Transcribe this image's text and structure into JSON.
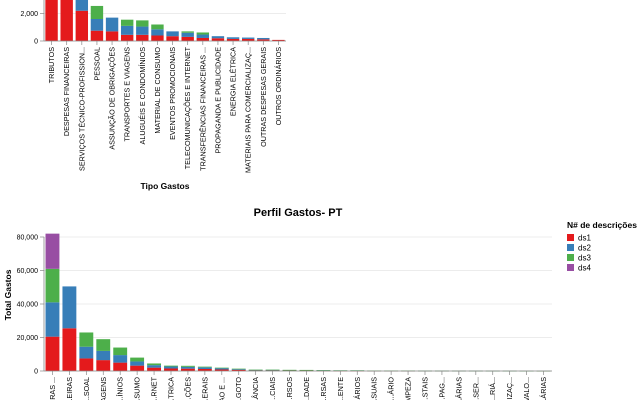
{
  "colors": {
    "ds1": "#e41a1c",
    "ds2": "#377eb8",
    "ds3": "#4daf4a",
    "ds4": "#984ea3"
  },
  "chart_data": [
    {
      "type": "bar",
      "stacked": true,
      "title": "",
      "xlabel": "Tipo Gastos",
      "ylabel": "",
      "ylim": [
        0,
        4000
      ],
      "yticks": [
        0,
        2000
      ],
      "categories": [
        "TRIBUTOS",
        "DESPESAS FINANCEIRAS",
        "SERVIÇOS TÉCNICO-PROFISSION...",
        "PESSOAL",
        "ASSUNÇÃO DE OBRIGAÇÕES",
        "TRANSPORTES E VIAGENS",
        "ALUGUÉIS E CONDOMÍNIOS",
        "MATERIAL DE CONSUMO",
        "EVENTOS PROMOCIONAIS",
        "TELECOMUNICAÇÕES E INTERNET",
        "TRANSFERÊNCIAS FINANCEIRAS ...",
        "PROPAGANDA E PUBLICIDADE",
        "ENERGIA ELÉTRICA",
        "MATERIAIS PARA COMERCIALIZAÇ...",
        "OUTRAS DESPESAS GERAIS",
        "OUTROS ORDINÁRIOS"
      ],
      "series": [
        {
          "name": "ds1",
          "values": [
            3200,
            3200,
            2200,
            750,
            700,
            450,
            450,
            400,
            350,
            300,
            220,
            200,
            150,
            150,
            120,
            80
          ]
        },
        {
          "name": "ds2",
          "values": [
            0,
            0,
            900,
            850,
            1000,
            650,
            600,
            450,
            350,
            300,
            250,
            150,
            120,
            100,
            100,
            0
          ]
        },
        {
          "name": "ds3",
          "values": [
            0,
            0,
            0,
            950,
            0,
            450,
            450,
            350,
            0,
            100,
            150,
            0,
            0,
            0,
            0,
            0
          ]
        },
        {
          "name": "ds4",
          "values": [
            0,
            0,
            0,
            0,
            0,
            0,
            0,
            0,
            0,
            0,
            0,
            0,
            0,
            0,
            0,
            0
          ]
        }
      ]
    },
    {
      "type": "bar",
      "stacked": true,
      "title": "Perfil Gastos- PT",
      "xlabel": "",
      "ylabel": "Total Gastos",
      "ylim": [
        0,
        80000
      ],
      "yticks": [
        0,
        20000,
        40000,
        60000,
        80000
      ],
      "categories": [
        "...RAS ...",
        "...EIRAS",
        "...SOAL",
        "...AGENS",
        "...ÍNIOS",
        "...SUMO",
        "...RNET",
        "...TRICA",
        "...ÇÕES",
        "...ERAIS",
        "...AO E ...",
        "...GOTO",
        "...ÂNCIA",
        "...CIAIS",
        "...RSOS",
        "...DADE",
        "...RSAS",
        "...ENTE",
        "...ÁRIOS",
        "...SUAIS",
        "...ÁRIO",
        "...MPEZA",
        "...STAIS",
        "...PAG...",
        "...ÁRIAS",
        "...SER...",
        "...RIÁ...",
        "...IZAÇ...",
        "...VALO...",
        "...ÁRIAS"
      ],
      "series": [
        {
          "name": "ds1",
          "values": [
            20500,
            25500,
            7500,
            6500,
            5000,
            3200,
            2000,
            1500,
            1400,
            1200,
            900,
            700,
            400,
            400,
            350,
            300,
            250,
            200,
            200,
            150,
            150,
            150,
            100,
            100,
            100,
            100,
            80,
            80,
            60,
            50
          ]
        },
        {
          "name": "ds2",
          "values": [
            20500,
            25000,
            7000,
            5500,
            4500,
            2500,
            1500,
            1200,
            1100,
            1000,
            800,
            500,
            300,
            300,
            250,
            250,
            200,
            150,
            150,
            100,
            100,
            100,
            80,
            80,
            50,
            50,
            40,
            30,
            20,
            20
          ]
        },
        {
          "name": "ds3",
          "values": [
            20000,
            0,
            8500,
            7000,
            4500,
            2300,
            1000,
            500,
            600,
            400,
            300,
            200,
            100,
            100,
            100,
            100,
            50,
            50,
            50,
            50,
            30,
            30,
            20,
            20,
            20,
            10,
            10,
            10,
            10,
            10
          ]
        },
        {
          "name": "ds4",
          "values": [
            21000,
            0,
            0,
            0,
            0,
            0,
            0,
            0,
            0,
            0,
            0,
            0,
            0,
            0,
            0,
            0,
            0,
            0,
            0,
            0,
            0,
            0,
            0,
            0,
            0,
            0,
            0,
            0,
            0,
            0
          ]
        }
      ],
      "legend": {
        "title": "N# de descrições",
        "placement": "right"
      }
    }
  ]
}
